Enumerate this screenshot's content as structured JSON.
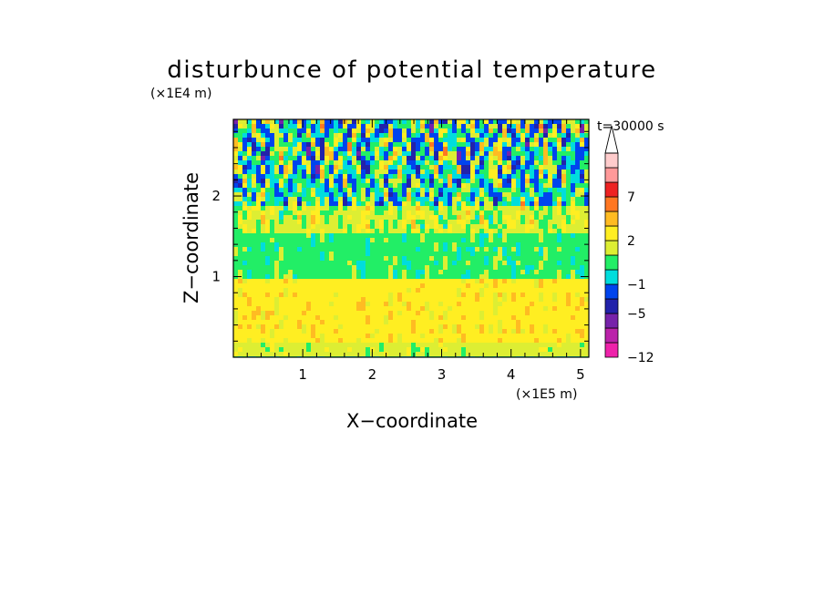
{
  "chart_data": {
    "type": "heatmap",
    "title": "disturbunce of potential temperature",
    "xlabel": "X−coordinate",
    "ylabel": "Z−coordinate",
    "x_scale_label": "(×1E5 m)",
    "y_scale_label": "(×1E4 m)",
    "time_label": "t=30000 s",
    "xlim": [
      0,
      5.12
    ],
    "ylim": [
      0,
      2.95
    ],
    "x_ticks": [
      1,
      2,
      3,
      4,
      5
    ],
    "x_tick_labels": [
      "1",
      "2",
      "3",
      "4",
      "5"
    ],
    "y_ticks": [
      1,
      2
    ],
    "y_tick_labels": [
      "1",
      "2"
    ],
    "colorbar": {
      "levels": [
        -12,
        -9,
        -7,
        -5,
        -3,
        -1,
        0,
        1,
        2,
        3,
        5,
        7,
        9,
        11
      ],
      "colors": [
        "#ee22aa",
        "#bb22aa",
        "#7722aa",
        "#2222aa",
        "#0044ee",
        "#00dddd",
        "#22ee66",
        "#ddee33",
        "#ffee22",
        "#ffbb22",
        "#ff7722",
        "#ee2222",
        "#ff9999",
        "#ffcccc"
      ],
      "tick_values": [
        -12,
        -5,
        -1,
        2,
        7
      ],
      "tick_labels": [
        "−12",
        "−5",
        "−1",
        "2",
        "7"
      ],
      "extend": "max"
    },
    "field_description": {
      "bands": [
        {
          "z_range": [
            0,
            0.2
          ],
          "value": 1.5
        },
        {
          "z_range": [
            0.2,
            0.95
          ],
          "value": 2.5
        },
        {
          "z_range": [
            0.95,
            1.55
          ],
          "value": 0.5
        },
        {
          "z_range": [
            1.55,
            1.9
          ],
          "value": 1.5
        },
        {
          "z_range": [
            1.9,
            2.95
          ],
          "value": 0
        }
      ]
    }
  }
}
